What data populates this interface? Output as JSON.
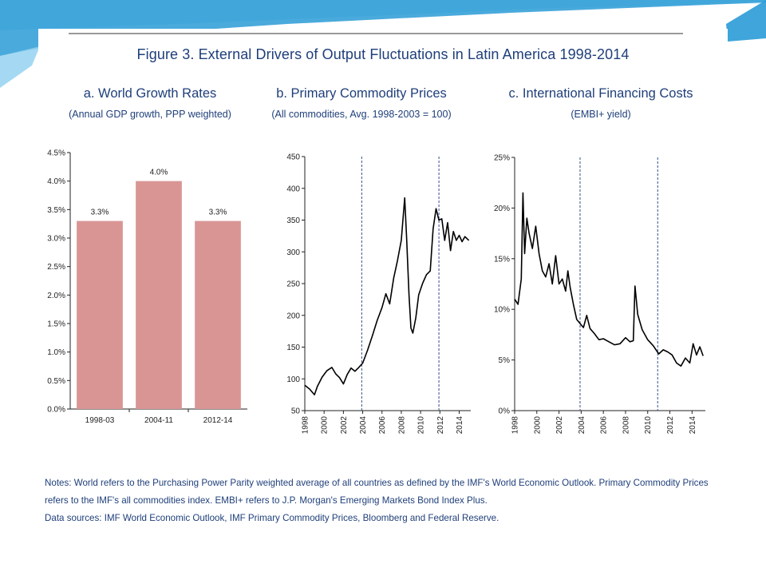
{
  "theme": {
    "banner_dark": "#2a9bd6",
    "banner_light": "#bfe6f8",
    "bar_color": "#d99594",
    "line_color": "#000000",
    "divider_color": "#2e4f8f",
    "title_color": "#1f3f7a"
  },
  "figure_title": "Figure 3. External Drivers of Output Fluctuations in Latin America 1998-2014",
  "panels": [
    {
      "title": "a. World Growth Rates",
      "subtitle": "(Annual GDP growth, PPP weighted)"
    },
    {
      "title": "b. Primary Commodity Prices",
      "subtitle": "(All commodities, Avg. 1998-2003 = 100)"
    },
    {
      "title": "c. International Financing Costs",
      "subtitle": "(EMBI+ yield)"
    }
  ],
  "notes": [
    "Notes: World refers to the Purchasing Power Parity weighted average of all countries as defined by the IMF's World Economic Outlook. Primary Commodity Prices refers to the IMF's all commodities index. EMBI+ refers to J.P. Morgan's Emerging Markets Bond Index Plus.",
    "Data sources: IMF World Economic Outlook, IMF Primary Commodity Prices, Bloomberg and Federal Reserve."
  ],
  "chart_data": [
    {
      "type": "bar",
      "categories": [
        "1998-03",
        "2004-11",
        "2012-14"
      ],
      "values": [
        3.3,
        4.0,
        3.3
      ],
      "data_labels": [
        "3.3%",
        "4.0%",
        "3.3%"
      ],
      "ylim": [
        0,
        4.5
      ],
      "yticks": [
        0,
        0.5,
        1.0,
        1.5,
        2.0,
        2.5,
        3.0,
        3.5,
        4.0,
        4.5
      ],
      "ytick_labels": [
        "0.0%",
        "0.5%",
        "1.0%",
        "1.5%",
        "2.0%",
        "2.5%",
        "3.0%",
        "3.5%",
        "4.0%",
        "4.5%"
      ],
      "grid": false
    },
    {
      "type": "line",
      "xlim": [
        1998,
        2015.2
      ],
      "ylim": [
        50,
        450
      ],
      "xticks": [
        1998,
        2000,
        2002,
        2004,
        2006,
        2008,
        2010,
        2012,
        2014
      ],
      "xtick_labels": [
        "1998",
        "2000",
        "2002",
        "2004",
        "2006",
        "2008",
        "2010",
        "2012",
        "2014"
      ],
      "yticks": [
        50,
        100,
        150,
        200,
        250,
        300,
        350,
        400,
        450
      ],
      "ytick_labels": [
        "50",
        "100",
        "150",
        "200",
        "250",
        "300",
        "350",
        "400",
        "450"
      ],
      "vlines": [
        2003.9,
        2011.9
      ],
      "grid": false,
      "series": [
        {
          "x": [
            1998.0,
            1998.5,
            1999.0,
            1999.3,
            1999.8,
            2000.3,
            2000.8,
            2001.2,
            2001.6,
            2002.0,
            2002.4,
            2002.8,
            2003.2,
            2003.6,
            2004.0,
            2004.5,
            2005.0,
            2005.5,
            2006.0,
            2006.4,
            2006.8,
            2007.2,
            2007.6,
            2008.0,
            2008.35,
            2008.55,
            2008.8,
            2009.0,
            2009.2,
            2009.5,
            2009.8,
            2010.2,
            2010.6,
            2011.0,
            2011.3,
            2011.6,
            2011.9,
            2012.2,
            2012.5,
            2012.8,
            2013.1,
            2013.4,
            2013.7,
            2014.0,
            2014.3,
            2014.6,
            2015.0
          ],
          "y": [
            90,
            84,
            75,
            88,
            103,
            113,
            118,
            108,
            102,
            92,
            107,
            117,
            112,
            118,
            125,
            145,
            168,
            192,
            212,
            234,
            218,
            258,
            286,
            318,
            385,
            322,
            232,
            180,
            172,
            196,
            232,
            250,
            264,
            270,
            336,
            368,
            350,
            352,
            318,
            346,
            302,
            332,
            318,
            326,
            316,
            324,
            318
          ]
        }
      ]
    },
    {
      "type": "line",
      "xlim": [
        1998,
        2015.2
      ],
      "ylim": [
        0,
        25
      ],
      "xticks": [
        1998,
        2000,
        2002,
        2004,
        2006,
        2008,
        2010,
        2012,
        2014
      ],
      "xtick_labels": [
        "1998",
        "2000",
        "2002",
        "2004",
        "2006",
        "2008",
        "2010",
        "2012",
        "2014"
      ],
      "yticks": [
        0,
        5,
        10,
        15,
        20,
        25
      ],
      "ytick_labels": [
        "0%",
        "5%",
        "10%",
        "15%",
        "20%",
        "25%"
      ],
      "vlines": [
        2003.9,
        2010.9
      ],
      "grid": false,
      "series": [
        {
          "x": [
            1998.0,
            1998.3,
            1998.6,
            1998.75,
            1998.9,
            1999.1,
            1999.3,
            1999.6,
            1999.9,
            2000.2,
            2000.5,
            2000.8,
            2001.1,
            2001.4,
            2001.7,
            2002.0,
            2002.3,
            2002.6,
            2002.8,
            2003.0,
            2003.3,
            2003.6,
            2003.9,
            2004.2,
            2004.5,
            2004.8,
            2005.2,
            2005.6,
            2006.0,
            2006.5,
            2007.0,
            2007.5,
            2008.0,
            2008.4,
            2008.7,
            2008.85,
            2009.1,
            2009.5,
            2010.0,
            2010.5,
            2011.0,
            2011.4,
            2011.8,
            2012.2,
            2012.6,
            2013.0,
            2013.4,
            2013.8,
            2014.1,
            2014.4,
            2014.7,
            2015.0
          ],
          "y": [
            11.0,
            10.5,
            13.0,
            21.5,
            15.5,
            19.0,
            17.5,
            16.0,
            18.2,
            15.5,
            13.8,
            13.2,
            14.5,
            12.5,
            15.3,
            12.5,
            13.0,
            11.8,
            13.8,
            12.2,
            10.5,
            9.0,
            8.6,
            8.2,
            9.4,
            8.1,
            7.6,
            7.0,
            7.1,
            6.8,
            6.5,
            6.6,
            7.2,
            6.8,
            6.9,
            12.3,
            9.5,
            8.0,
            7.0,
            6.4,
            5.6,
            6.0,
            5.8,
            5.5,
            4.7,
            4.4,
            5.2,
            4.7,
            6.6,
            5.5,
            6.3,
            5.4
          ]
        }
      ]
    }
  ]
}
